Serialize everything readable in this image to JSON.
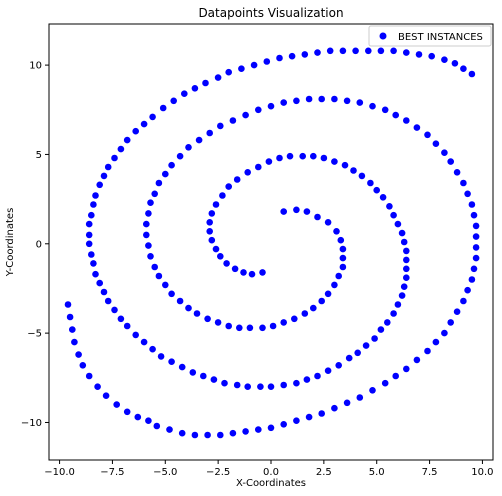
{
  "chart_data": {
    "type": "scatter",
    "title": "Datapoints Visualization",
    "xlabel": "X-Coordinates",
    "ylabel": "Y-Coordinates",
    "xlim": [
      -10.5,
      10.5
    ],
    "ylim": [
      -12.1,
      12.3
    ],
    "xticks": [
      {
        "value": -10.0,
        "label": "−10.0"
      },
      {
        "value": -7.5,
        "label": "−7.5"
      },
      {
        "value": -5.0,
        "label": "−5.0"
      },
      {
        "value": -2.5,
        "label": "−2.5"
      },
      {
        "value": 0.0,
        "label": "0.0"
      },
      {
        "value": 2.5,
        "label": "2.5"
      },
      {
        "value": 5.0,
        "label": "5.0"
      },
      {
        "value": 7.5,
        "label": "7.5"
      },
      {
        "value": 10.0,
        "label": "10.0"
      }
    ],
    "yticks": [
      {
        "value": -10,
        "label": "−10"
      },
      {
        "value": -5,
        "label": "−5"
      },
      {
        "value": 0,
        "label": "0"
      },
      {
        "value": 5,
        "label": "5"
      },
      {
        "value": 10,
        "label": "10"
      }
    ],
    "grid": false,
    "legend": "upper-right",
    "series": [
      {
        "name": "BEST INSTANCES",
        "color": "#0000ff",
        "marker": "circle",
        "points": [
          [
            -0.4,
            -1.6
          ],
          [
            -0.9,
            -1.7
          ],
          [
            -1.3,
            -1.6
          ],
          [
            -1.7,
            -1.4
          ],
          [
            -2.1,
            -1.1
          ],
          [
            -2.4,
            -0.7
          ],
          [
            -2.6,
            -0.3
          ],
          [
            -2.8,
            0.2
          ],
          [
            -2.9,
            0.7
          ],
          [
            -2.9,
            1.2
          ],
          [
            -2.8,
            1.7
          ],
          [
            -2.6,
            2.2
          ],
          [
            -2.3,
            2.7
          ],
          [
            -2.0,
            3.2
          ],
          [
            -1.6,
            3.6
          ],
          [
            -1.1,
            4.0
          ],
          [
            -0.6,
            4.3
          ],
          [
            -0.1,
            4.6
          ],
          [
            0.4,
            4.8
          ],
          [
            0.9,
            4.9
          ],
          [
            1.5,
            4.9
          ],
          [
            2.0,
            4.9
          ],
          [
            2.5,
            4.8
          ],
          [
            3.0,
            4.6
          ],
          [
            3.5,
            4.4
          ],
          [
            3.9,
            4.1
          ],
          [
            4.3,
            3.8
          ],
          [
            4.7,
            3.4
          ],
          [
            5.0,
            3.0
          ],
          [
            5.3,
            2.6
          ],
          [
            5.6,
            2.1
          ],
          [
            5.8,
            1.6
          ],
          [
            6.0,
            1.1
          ],
          [
            6.2,
            0.6
          ],
          [
            6.3,
            0.1
          ],
          [
            6.4,
            -0.4
          ],
          [
            6.4,
            -0.9
          ],
          [
            6.4,
            -1.4
          ],
          [
            6.4,
            -1.9
          ],
          [
            6.3,
            -2.4
          ],
          [
            6.2,
            -2.9
          ],
          [
            6.0,
            -3.4
          ],
          [
            5.8,
            -3.9
          ],
          [
            5.5,
            -4.4
          ],
          [
            5.2,
            -4.8
          ],
          [
            4.9,
            -5.3
          ],
          [
            4.5,
            -5.7
          ],
          [
            4.1,
            -6.1
          ],
          [
            3.7,
            -6.4
          ],
          [
            3.2,
            -6.8
          ],
          [
            2.7,
            -7.1
          ],
          [
            2.2,
            -7.4
          ],
          [
            1.7,
            -7.6
          ],
          [
            1.2,
            -7.8
          ],
          [
            0.6,
            -7.9
          ],
          [
            0.0,
            -8.0
          ],
          [
            -0.5,
            -8.0
          ],
          [
            -1.1,
            -8.0
          ],
          [
            -1.6,
            -7.9
          ],
          [
            -2.2,
            -7.8
          ],
          [
            -2.7,
            -7.6
          ],
          [
            -3.2,
            -7.4
          ],
          [
            -3.7,
            -7.2
          ],
          [
            -4.2,
            -6.9
          ],
          [
            -4.7,
            -6.6
          ],
          [
            -5.2,
            -6.3
          ],
          [
            -5.6,
            -5.9
          ],
          [
            -6.0,
            -5.5
          ],
          [
            -6.4,
            -5.1
          ],
          [
            -6.8,
            -4.6
          ],
          [
            -7.1,
            -4.2
          ],
          [
            -7.4,
            -3.7
          ],
          [
            -7.7,
            -3.2
          ],
          [
            -7.9,
            -2.7
          ],
          [
            -8.1,
            -2.2
          ],
          [
            -8.3,
            -1.7
          ],
          [
            -8.4,
            -1.1
          ],
          [
            -8.5,
            -0.6
          ],
          [
            -8.6,
            0.0
          ],
          [
            -8.6,
            0.5
          ],
          [
            -8.6,
            1.1
          ],
          [
            -8.5,
            1.6
          ],
          [
            -8.4,
            2.2
          ],
          [
            -8.3,
            2.7
          ],
          [
            -8.1,
            3.3
          ],
          [
            -7.9,
            3.8
          ],
          [
            -7.7,
            4.3
          ],
          [
            -7.4,
            4.8
          ],
          [
            -7.1,
            5.3
          ],
          [
            -6.8,
            5.8
          ],
          [
            -6.4,
            6.3
          ],
          [
            -6.0,
            6.7
          ],
          [
            -5.6,
            7.1
          ],
          [
            -5.1,
            7.6
          ],
          [
            -4.6,
            8.0
          ],
          [
            -4.1,
            8.4
          ],
          [
            -3.6,
            8.7
          ],
          [
            -3.1,
            9.0
          ],
          [
            -2.5,
            9.3
          ],
          [
            -2.0,
            9.6
          ],
          [
            -1.4,
            9.8
          ],
          [
            -0.8,
            10.0
          ],
          [
            -0.2,
            10.2
          ],
          [
            0.4,
            10.4
          ],
          [
            1.0,
            10.5
          ],
          [
            1.6,
            10.6
          ],
          [
            2.2,
            10.7
          ],
          [
            2.8,
            10.8
          ],
          [
            3.4,
            10.8
          ],
          [
            4.0,
            10.8
          ],
          [
            4.6,
            10.8
          ],
          [
            5.2,
            10.8
          ],
          [
            5.8,
            10.8
          ],
          [
            6.4,
            10.7
          ],
          [
            7.0,
            10.6
          ],
          [
            7.6,
            10.5
          ],
          [
            8.2,
            10.3
          ],
          [
            8.7,
            10.1
          ],
          [
            9.1,
            9.8
          ],
          [
            9.5,
            9.5
          ],
          [
            2.2,
            1.5
          ],
          [
            2.7,
            1.2
          ],
          [
            3.1,
            0.7
          ],
          [
            3.3,
            0.2
          ],
          [
            3.4,
            -0.3
          ],
          [
            3.4,
            -0.8
          ],
          [
            3.4,
            -1.3
          ],
          [
            3.2,
            -1.8
          ],
          [
            3.0,
            -2.3
          ],
          [
            2.7,
            -2.8
          ],
          [
            2.4,
            -3.2
          ],
          [
            2.0,
            -3.6
          ],
          [
            1.6,
            -3.9
          ],
          [
            1.1,
            -4.2
          ],
          [
            0.6,
            -4.4
          ],
          [
            0.1,
            -4.6
          ],
          [
            -0.4,
            -4.7
          ],
          [
            -1.0,
            -4.7
          ],
          [
            -1.5,
            -4.7
          ],
          [
            -2.0,
            -4.6
          ],
          [
            -2.5,
            -4.4
          ],
          [
            -3.0,
            -4.2
          ],
          [
            -3.5,
            -3.9
          ],
          [
            -3.9,
            -3.6
          ],
          [
            -4.3,
            -3.2
          ],
          [
            -4.7,
            -2.8
          ],
          [
            -5.0,
            -2.3
          ],
          [
            -5.3,
            -1.8
          ],
          [
            -5.5,
            -1.3
          ],
          [
            -5.7,
            -0.7
          ],
          [
            -5.8,
            -0.1
          ],
          [
            -5.9,
            0.5
          ],
          [
            -5.9,
            1.1
          ],
          [
            -5.8,
            1.7
          ],
          [
            -5.7,
            2.3
          ],
          [
            -5.5,
            2.8
          ],
          [
            -5.3,
            3.4
          ],
          [
            -5.0,
            3.9
          ],
          [
            -4.7,
            4.4
          ],
          [
            -4.3,
            4.9
          ],
          [
            -3.9,
            5.4
          ],
          [
            -3.4,
            5.8
          ],
          [
            -2.9,
            6.2
          ],
          [
            -2.4,
            6.6
          ],
          [
            -1.8,
            6.9
          ],
          [
            -1.2,
            7.2
          ],
          [
            -0.6,
            7.5
          ],
          [
            0.0,
            7.7
          ],
          [
            0.6,
            7.9
          ],
          [
            1.2,
            8.0
          ],
          [
            1.8,
            8.1
          ],
          [
            2.4,
            8.1
          ],
          [
            3.0,
            8.1
          ],
          [
            3.6,
            8.0
          ],
          [
            4.2,
            7.9
          ],
          [
            4.8,
            7.7
          ],
          [
            5.4,
            7.5
          ],
          [
            5.9,
            7.2
          ],
          [
            6.4,
            6.9
          ],
          [
            6.9,
            6.5
          ],
          [
            7.4,
            6.1
          ],
          [
            7.8,
            5.6
          ],
          [
            8.2,
            5.1
          ],
          [
            8.5,
            4.6
          ],
          [
            8.8,
            4.0
          ],
          [
            9.1,
            3.4
          ],
          [
            9.3,
            2.8
          ],
          [
            9.5,
            2.2
          ],
          [
            9.6,
            1.6
          ],
          [
            9.7,
            1.0
          ],
          [
            9.7,
            0.4
          ],
          [
            9.7,
            -0.2
          ],
          [
            9.7,
            -0.8
          ],
          [
            9.6,
            -1.4
          ],
          [
            9.5,
            -2.0
          ],
          [
            9.3,
            -2.6
          ],
          [
            9.1,
            -3.2
          ],
          [
            8.8,
            -3.8
          ],
          [
            8.5,
            -4.4
          ],
          [
            8.2,
            -5.0
          ],
          [
            7.8,
            -5.5
          ],
          [
            7.4,
            -6.0
          ],
          [
            6.9,
            -6.5
          ],
          [
            6.4,
            -7.0
          ],
          [
            5.9,
            -7.4
          ],
          [
            5.4,
            -7.8
          ],
          [
            4.8,
            -8.2
          ],
          [
            4.2,
            -8.6
          ],
          [
            3.6,
            -8.9
          ],
          [
            3.0,
            -9.2
          ],
          [
            2.4,
            -9.5
          ],
          [
            1.8,
            -9.7
          ],
          [
            1.2,
            -9.9
          ],
          [
            0.6,
            -10.1
          ],
          [
            0.0,
            -10.3
          ],
          [
            -0.6,
            -10.4
          ],
          [
            -1.2,
            -10.5
          ],
          [
            -1.8,
            -10.6
          ],
          [
            -2.4,
            -10.7
          ],
          [
            -3.0,
            -10.7
          ],
          [
            -3.6,
            -10.7
          ],
          [
            -4.2,
            -10.6
          ],
          [
            -4.8,
            -10.4
          ],
          [
            -5.4,
            -10.2
          ],
          [
            -5.8,
            -9.9
          ],
          [
            0.6,
            1.8
          ],
          [
            1.2,
            1.9
          ],
          [
            1.7,
            1.8
          ],
          [
            -6.3,
            -9.7
          ],
          [
            -6.8,
            -9.4
          ],
          [
            -7.3,
            -9.0
          ],
          [
            -7.8,
            -8.5
          ],
          [
            -8.2,
            -8.0
          ],
          [
            -8.6,
            -7.4
          ],
          [
            -8.9,
            -6.8
          ],
          [
            -9.1,
            -6.2
          ],
          [
            -9.3,
            -5.5
          ],
          [
            -9.4,
            -4.8
          ],
          [
            -9.5,
            -4.1
          ],
          [
            -9.6,
            -3.4
          ]
        ]
      }
    ]
  }
}
